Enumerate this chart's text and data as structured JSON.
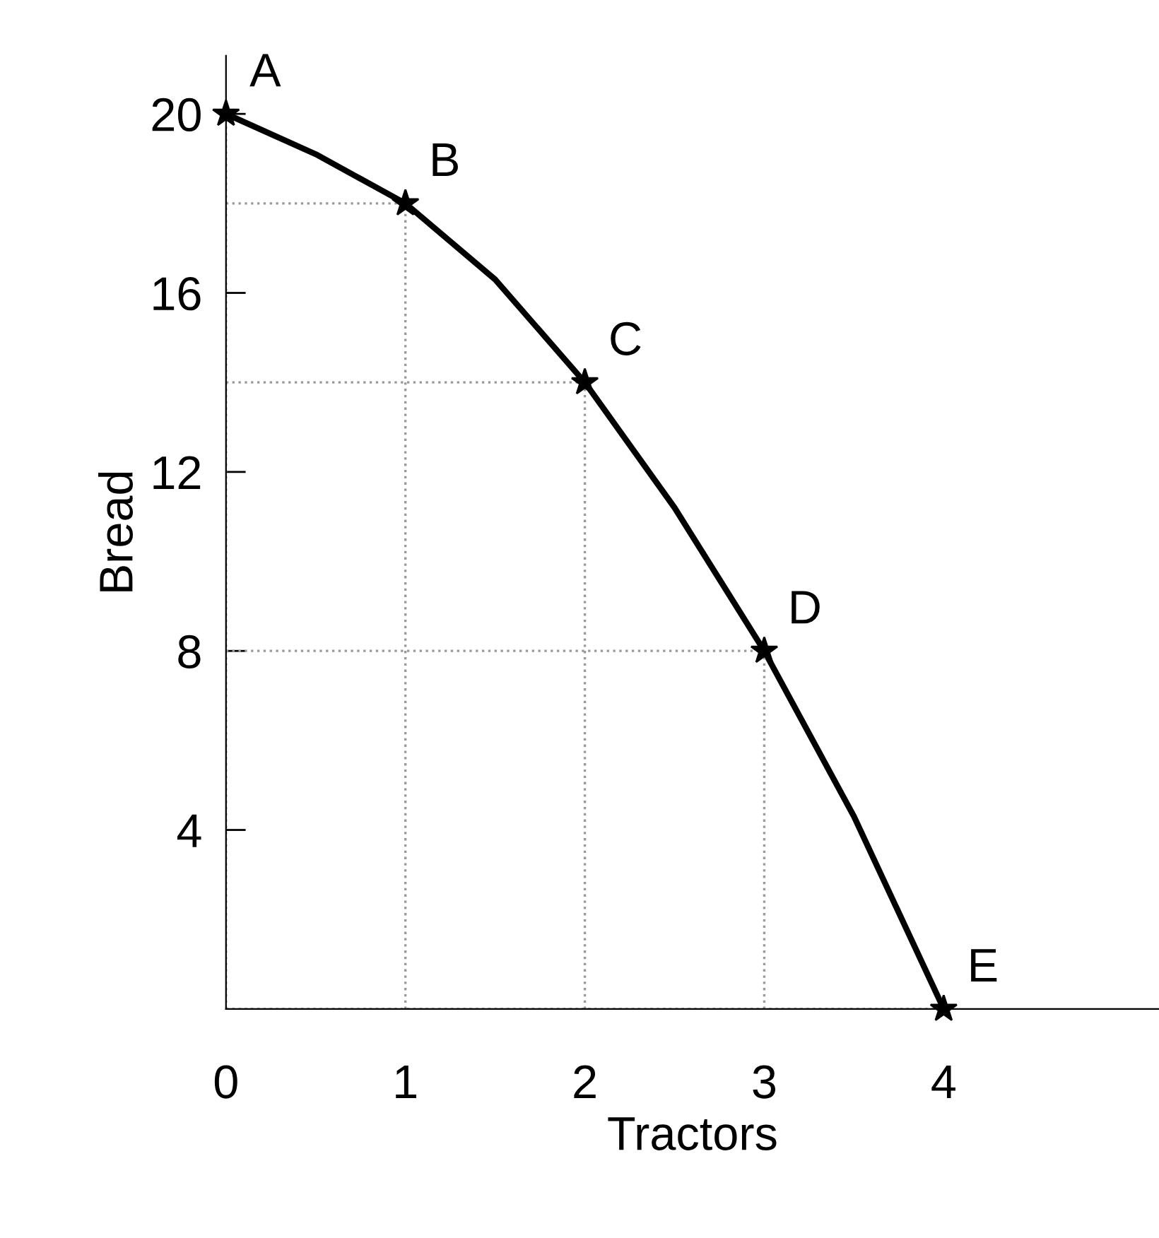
{
  "chart_data": {
    "type": "line",
    "xlabel": "Tractors",
    "ylabel": "Bread",
    "x": [
      0,
      1,
      2,
      3,
      4
    ],
    "series": [
      {
        "color": "#000000",
        "x": [
          0,
          0.5,
          1,
          1.5,
          2,
          2.5,
          3,
          3.5,
          4
        ],
        "values": [
          20,
          19.1,
          18,
          16.3,
          14,
          11.2,
          8,
          4.3,
          0
        ],
        "marker": "none"
      },
      {
        "type": "scatter",
        "color": "#000000",
        "values": [
          20,
          18,
          14,
          8,
          0
        ],
        "marker": "star"
      }
    ],
    "line_style": "solid",
    "grid": true,
    "legend": false,
    "xlim": [
      0,
      5.2
    ],
    "ylim": [
      0,
      21.3
    ],
    "xticks": [
      0,
      1,
      2,
      3,
      4
    ],
    "yticks": [
      4,
      8,
      12,
      16,
      20
    ],
    "annotations": [
      {
        "text": "A",
        "x": 0,
        "y": 20
      },
      {
        "text": "B",
        "x": 1,
        "y": 18
      },
      {
        "text": "C",
        "x": 2,
        "y": 14
      },
      {
        "text": "D",
        "x": 3,
        "y": 8
      },
      {
        "text": "E",
        "x": 4,
        "y": 0
      }
    ]
  }
}
